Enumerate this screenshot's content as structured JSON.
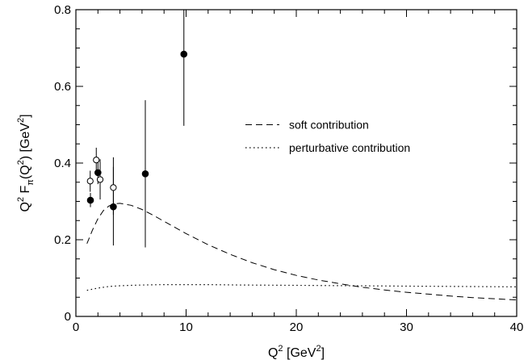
{
  "chart_data": {
    "type": "scatter",
    "title": "",
    "xlabel": {
      "base": "Q",
      "exp": "2",
      "unit_open": " [GeV",
      "unit_exp": "2",
      "unit_close": "]"
    },
    "ylabel": {
      "p1": "Q",
      "e1": "2",
      "p2": " F",
      "sub": "π",
      "p3": "(Q",
      "e3": "2",
      "p4": ") [GeV",
      "e4": "2",
      "p5": "]"
    },
    "xlim": [
      0,
      40
    ],
    "ylim": [
      0,
      0.8
    ],
    "x_ticks": [
      0,
      10,
      20,
      30,
      40
    ],
    "y_ticks": [
      0,
      0.2,
      0.4,
      0.6,
      0.8
    ],
    "x_tick_labels": [
      "0",
      "10",
      "20",
      "30",
      "40"
    ],
    "y_tick_labels": [
      "0",
      "0.2",
      "0.4",
      "0.6",
      "0.8"
    ],
    "grid": false,
    "legend_placement": "center-right",
    "legend": [
      {
        "label": "soft contribution",
        "style": "dashed"
      },
      {
        "label": "perturbative contribution",
        "style": "dotted"
      }
    ],
    "series": [
      {
        "name": "soft contribution",
        "kind": "line",
        "style": "dashed",
        "x": [
          1,
          1.5,
          2,
          2.5,
          3,
          3.5,
          4,
          5,
          6,
          7,
          8,
          9,
          10,
          12,
          14,
          16,
          18,
          20,
          22,
          24,
          26,
          28,
          30,
          32,
          34,
          36,
          38,
          40
        ],
        "y": [
          0.19,
          0.225,
          0.255,
          0.276,
          0.288,
          0.294,
          0.295,
          0.29,
          0.279,
          0.264,
          0.248,
          0.232,
          0.216,
          0.187,
          0.162,
          0.14,
          0.122,
          0.107,
          0.095,
          0.085,
          0.076,
          0.069,
          0.063,
          0.058,
          0.053,
          0.049,
          0.046,
          0.043
        ]
      },
      {
        "name": "perturbative contribution",
        "kind": "line",
        "style": "dotted",
        "x": [
          1,
          2,
          3,
          4,
          5,
          6,
          8,
          10,
          12,
          15,
          20,
          25,
          30,
          35,
          40
        ],
        "y": [
          0.068,
          0.074,
          0.078,
          0.08,
          0.081,
          0.082,
          0.083,
          0.083,
          0.083,
          0.082,
          0.081,
          0.08,
          0.079,
          0.078,
          0.077
        ]
      },
      {
        "kind": "points",
        "marker": "filled",
        "points": [
          {
            "x": 1.32,
            "y": 0.303,
            "lo": 0.285,
            "hi": 0.322
          },
          {
            "x": 2.0,
            "y": 0.375,
            "lo": 0.345,
            "hi": 0.405
          },
          {
            "x": 3.4,
            "y": 0.286,
            "lo": 0.185,
            "hi": 0.39
          },
          {
            "x": 6.3,
            "y": 0.372,
            "lo": 0.18,
            "hi": 0.564
          },
          {
            "x": 9.8,
            "y": 0.684,
            "lo": 0.497,
            "hi": 0.8
          }
        ]
      },
      {
        "kind": "points",
        "marker": "open",
        "points": [
          {
            "x": 1.3,
            "y": 0.353,
            "lo": 0.325,
            "hi": 0.38
          },
          {
            "x": 1.85,
            "y": 0.408,
            "lo": 0.378,
            "hi": 0.44
          },
          {
            "x": 2.2,
            "y": 0.357,
            "lo": 0.305,
            "hi": 0.41
          },
          {
            "x": 3.4,
            "y": 0.336,
            "lo": 0.265,
            "hi": 0.415
          }
        ]
      }
    ]
  }
}
